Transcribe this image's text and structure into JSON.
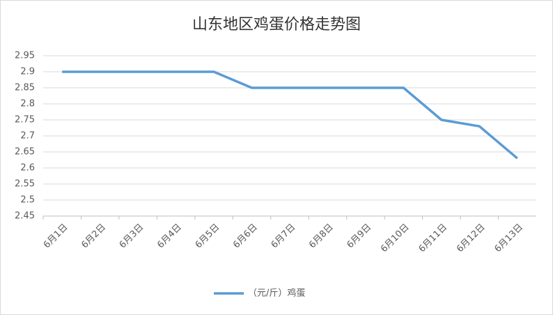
{
  "chart_data": {
    "type": "line",
    "title": "山东地区鸡蛋价格走势图",
    "categories": [
      "6月1日",
      "6月2日",
      "6月3日",
      "6月4日",
      "6月5日",
      "6月6日",
      "6月7日",
      "6月8日",
      "6月9日",
      "6月10日",
      "6月11日",
      "6月12日",
      "6月13日"
    ],
    "series": [
      {
        "name": "（元/斤）鸡蛋",
        "color": "#5b9bd5",
        "values": [
          2.9,
          2.9,
          2.9,
          2.9,
          2.9,
          2.85,
          2.85,
          2.85,
          2.85,
          2.85,
          2.75,
          2.73,
          2.63
        ]
      }
    ],
    "ylim": [
      2.45,
      2.95
    ],
    "yticks": [
      2.45,
      2.5,
      2.55,
      2.6,
      2.65,
      2.7,
      2.75,
      2.8,
      2.85,
      2.9,
      2.95
    ],
    "grid": true,
    "legend": "bottom"
  }
}
